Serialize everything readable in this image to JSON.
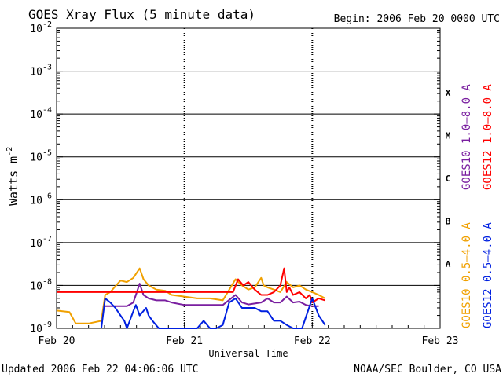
{
  "chart_data": {
    "type": "line",
    "title": "GOES Xray Flux (5 minute data)",
    "begin_text": "Begin:  2006 Feb 20 0000 UTC",
    "xlabel": "Universal Time",
    "ylabel_base": "Watts m",
    "ylabel_exp": "-2",
    "y_scale": "log",
    "ylim_exp": [
      -9,
      -2
    ],
    "y_ticks": [
      {
        "base": "10",
        "exp": "-2",
        "value_exp": -2
      },
      {
        "base": "10",
        "exp": "-3",
        "value_exp": -3
      },
      {
        "base": "10",
        "exp": "-4",
        "value_exp": -4
      },
      {
        "base": "10",
        "exp": "-5",
        "value_exp": -5
      },
      {
        "base": "10",
        "exp": "-6",
        "value_exp": -6
      },
      {
        "base": "10",
        "exp": "-7",
        "value_exp": -7
      },
      {
        "base": "10",
        "exp": "-8",
        "value_exp": -8
      },
      {
        "base": "10",
        "exp": "-9",
        "value_exp": -9
      }
    ],
    "x_ticks": [
      {
        "label": "Feb 20",
        "day": 0
      },
      {
        "label": "Feb 21",
        "day": 1
      },
      {
        "label": "Feb 22",
        "day": 2
      },
      {
        "label": "Feb 23",
        "day": 3
      }
    ],
    "flare_classes": [
      {
        "label": "X",
        "value_exp": -3.5
      },
      {
        "label": "M",
        "value_exp": -4.5
      },
      {
        "label": "C",
        "value_exp": -5.5
      },
      {
        "label": "B",
        "value_exp": -6.5
      },
      {
        "label": "A",
        "value_exp": -7.5
      }
    ],
    "right_legend": [
      {
        "label": "GOES10 1.0–8.0 A",
        "color": "#7a1fa0"
      },
      {
        "label": "GOES12 1.0–8.0 A",
        "color": "#ff0000"
      },
      {
        "label": "GOES10 0.5–4.0 A",
        "color": "#f0a000"
      },
      {
        "label": "GOES12 0.5–4.0 A",
        "color": "#0020e0"
      }
    ],
    "series": [
      {
        "name": "GOES10 0.5–4.0 A",
        "color": "#f0a000",
        "x": [
          0,
          0.1,
          0.15,
          0.2,
          0.25,
          0.35,
          0.38,
          0.42,
          0.5,
          0.55,
          0.6,
          0.65,
          0.68,
          0.72,
          0.78,
          0.85,
          0.9,
          1.0,
          1.1,
          1.2,
          1.3,
          1.4,
          1.45,
          1.5,
          1.55,
          1.6,
          1.62,
          1.65,
          1.7,
          1.75,
          1.8,
          1.85,
          1.9,
          1.95,
          2.0,
          2.05,
          2.1
        ],
        "y": [
          2.6e-09,
          2.4e-09,
          1.3e-09,
          1.3e-09,
          1.3e-09,
          1.5e-09,
          6e-09,
          7e-09,
          1.3e-08,
          1.2e-08,
          1.5e-08,
          2.5e-08,
          1.4e-08,
          1e-08,
          8e-09,
          7.5e-09,
          6e-09,
          5.5e-09,
          5e-09,
          5e-09,
          4.5e-09,
          1.4e-08,
          1e-08,
          8e-09,
          9e-09,
          1.5e-08,
          1e-08,
          9e-09,
          8e-09,
          7e-09,
          1.2e-08,
          9e-09,
          1e-08,
          8e-09,
          7e-09,
          6e-09,
          5e-09
        ]
      },
      {
        "name": "GOES10 1.0–8.0 A",
        "color": "#7a1fa0",
        "x": [
          0.38,
          0.55,
          0.6,
          0.62,
          0.65,
          0.68,
          0.72,
          0.78,
          0.85,
          0.9,
          1.0,
          1.3,
          1.4,
          1.45,
          1.5,
          1.55,
          1.6,
          1.65,
          1.7,
          1.75,
          1.8,
          1.85,
          1.9,
          1.95,
          2.0,
          2.05
        ],
        "y": [
          3.3e-09,
          3.3e-09,
          4e-09,
          6e-09,
          1.1e-08,
          6e-09,
          5e-09,
          4.5e-09,
          4.5e-09,
          4e-09,
          3.5e-09,
          3.5e-09,
          6e-09,
          4e-09,
          3.6e-09,
          3.8e-09,
          4e-09,
          5e-09,
          4e-09,
          4e-09,
          5.5e-09,
          4e-09,
          4.2e-09,
          3.5e-09,
          3.3e-09,
          3.3e-09
        ]
      },
      {
        "name": "GOES12 1.0–8.0 A",
        "color": "#ff0000",
        "x": [
          0,
          0.5,
          1.0,
          1.38,
          1.42,
          1.46,
          1.5,
          1.55,
          1.6,
          1.65,
          1.7,
          1.75,
          1.78,
          1.8,
          1.82,
          1.85,
          1.9,
          1.95,
          1.98,
          2.0,
          2.05,
          2.1
        ],
        "y": [
          7e-09,
          7e-09,
          7e-09,
          7e-09,
          1.4e-08,
          1e-08,
          1.2e-08,
          8e-09,
          6e-09,
          6e-09,
          7e-09,
          1e-08,
          2.5e-08,
          7e-09,
          9e-09,
          6e-09,
          7e-09,
          5e-09,
          6e-09,
          4e-09,
          5e-09,
          4.5e-09
        ]
      },
      {
        "name": "GOES12 0.5–4.0 A",
        "color": "#0020e0",
        "x": [
          0.35,
          0.38,
          0.42,
          0.46,
          0.5,
          0.53,
          0.55,
          0.6,
          0.62,
          0.65,
          0.7,
          0.72,
          0.75,
          0.8,
          0.9,
          1.0,
          1.1,
          1.15,
          1.2,
          1.22,
          1.25,
          1.3,
          1.35,
          1.4,
          1.45,
          1.5,
          1.55,
          1.6,
          1.65,
          1.7,
          1.75,
          1.8,
          1.85,
          1.9,
          1.92,
          2.0,
          2.05,
          2.1
        ],
        "y": [
          1e-09,
          5e-09,
          4e-09,
          3e-09,
          2e-09,
          1.5e-09,
          1e-09,
          2.5e-09,
          3.5e-09,
          2e-09,
          3e-09,
          2e-09,
          1.5e-09,
          1e-09,
          1e-09,
          1e-09,
          1e-09,
          1.5e-09,
          1e-09,
          1e-09,
          1e-09,
          1.2e-09,
          4e-09,
          5e-09,
          3e-09,
          3e-09,
          3e-09,
          2.5e-09,
          2.5e-09,
          1.5e-09,
          1.5e-09,
          1.2e-09,
          1e-09,
          1e-09,
          1e-09,
          5e-09,
          2e-09,
          1.2e-09
        ]
      }
    ],
    "grid": true
  },
  "footer": {
    "updated": "Updated 2006 Feb 22 04:06:06 UTC",
    "credit": "NOAA/SEC Boulder, CO USA"
  }
}
